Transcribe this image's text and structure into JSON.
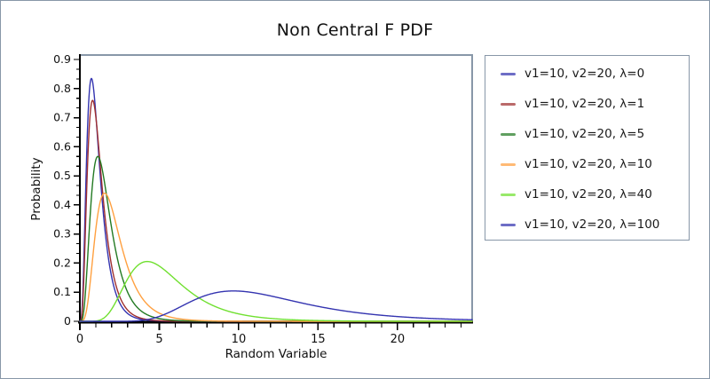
{
  "window": {
    "background": "#ffffff",
    "border_color": "#8897A8"
  },
  "chart_data": {
    "type": "line",
    "title": "Non Central F PDF",
    "xlabel": "Random Variable",
    "ylabel": "Probability",
    "xlim": [
      0,
      24.7
    ],
    "ylim": [
      0,
      0.9
    ],
    "x_tick_values": [
      0,
      5,
      10,
      15,
      20
    ],
    "x_tick_labels": [
      "0",
      "5",
      "10",
      "15",
      "20"
    ],
    "x_minor_tick_step": 1,
    "y_tick_values": [
      0,
      0.1,
      0.2,
      0.3,
      0.4,
      0.5,
      0.6,
      0.7,
      0.8,
      0.9
    ],
    "y_tick_labels": [
      "0",
      "0.1",
      "0.2",
      "0.3",
      "0.4",
      "0.5",
      "0.6",
      "0.7",
      "0.8",
      "0.9"
    ],
    "y_minor_ticks_per_major": 2,
    "grid": false,
    "frame_color": "#8897A8",
    "axis_color": "#000000",
    "legend_position": "outside-right",
    "series": [
      {
        "label": "v1=10, v2=20, λ=0",
        "color": "#3434B0",
        "distribution": "noncentral-F",
        "params": {
          "v1": 10,
          "v2": 20,
          "lambda": 0
        },
        "peak": {
          "x": 0.73,
          "y": 0.83
        }
      },
      {
        "label": "v1=10, v2=20, λ=1",
        "color": "#A03030",
        "distribution": "noncentral-F",
        "params": {
          "v1": 10,
          "v2": 20,
          "lambda": 1
        },
        "peak": {
          "x": 0.85,
          "y": 0.75
        }
      },
      {
        "label": "v1=10, v2=20, λ=5",
        "color": "#237A23",
        "distribution": "noncentral-F",
        "params": {
          "v1": 10,
          "v2": 20,
          "lambda": 5
        },
        "peak": {
          "x": 1.2,
          "y": 0.57
        }
      },
      {
        "label": "v1=10, v2=20, λ=10",
        "color": "#FFA040",
        "distribution": "noncentral-F",
        "params": {
          "v1": 10,
          "v2": 20,
          "lambda": 10
        },
        "peak": {
          "x": 1.75,
          "y": 0.44
        }
      },
      {
        "label": "v1=10, v2=20, λ=40",
        "color": "#70E030",
        "distribution": "noncentral-F",
        "params": {
          "v1": 10,
          "v2": 20,
          "lambda": 40
        },
        "peak": {
          "x": 4.3,
          "y": 0.2
        }
      },
      {
        "label": "v1=10, v2=20, λ=100",
        "color": "#3434B0",
        "distribution": "noncentral-F",
        "params": {
          "v1": 10,
          "v2": 20,
          "lambda": 100
        },
        "peak": {
          "x": 9.9,
          "y": 0.1
        }
      }
    ]
  }
}
